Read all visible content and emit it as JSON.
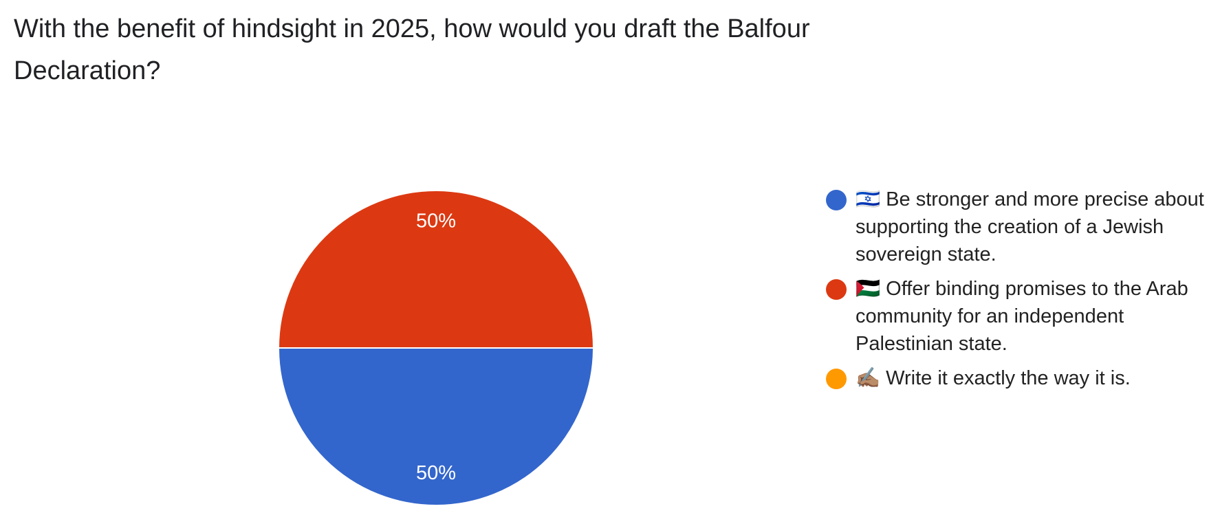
{
  "chart_data": {
    "type": "pie",
    "title": "With the benefit of hindsight in 2025, how would you draft the Balfour Declaration?",
    "categories": [
      "🇮🇱 Be stronger and more precise about supporting the creation of a Jewish sovereign state.",
      "🇵🇸 Offer binding promises to the Arab community for an independent Palestinian state.",
      "✍🏽 Write it exactly the way it is."
    ],
    "values": [
      50,
      50,
      0
    ],
    "value_labels": [
      "50%",
      "50%",
      null
    ],
    "colors": [
      "#3366cc",
      "#dc3912",
      "#ff9900"
    ]
  }
}
